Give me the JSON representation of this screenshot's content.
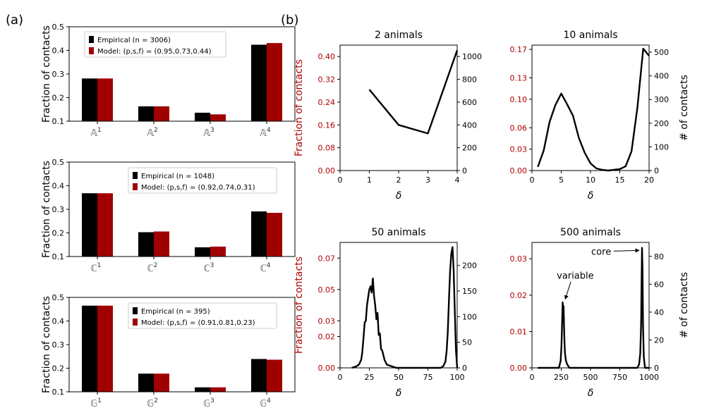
{
  "panel_labels": [
    "(a)",
    "(b)"
  ],
  "colors": {
    "empirical": "#000000",
    "model": "#a00000",
    "axis_red": "#b00000",
    "axis": "#000000"
  },
  "chart_data": [
    {
      "id": "a1",
      "type": "bar",
      "panel": "(a)",
      "categories": [
        "𝔸1",
        "𝔸2",
        "𝔸3",
        "𝔸4"
      ],
      "cat_base": "𝔸",
      "cat_sup": [
        "1",
        "2",
        "3",
        "4"
      ],
      "ylabel": "Fraction of contacts",
      "ylim": [
        0.1,
        0.5
      ],
      "yticks": [
        0.1,
        0.2,
        0.3,
        0.4,
        0.5
      ],
      "ytick_labels": [
        "0.1",
        "0.2",
        "0.3",
        "0.4",
        "0.5"
      ],
      "legend": [
        "Empirical (n = 3006)",
        "Model: (p,s,f) = (0.95,0.73,0.44)"
      ],
      "legend_position": "top-left",
      "series": [
        {
          "name": "Empirical (n = 3006)",
          "color": "#000000",
          "values": [
            0.281,
            0.163,
            0.136,
            0.424
          ]
        },
        {
          "name": "Model: (p,s,f) = (0.95,0.73,0.44)",
          "color": "#a00000",
          "values": [
            0.281,
            0.163,
            0.129,
            0.431
          ]
        }
      ]
    },
    {
      "id": "a2",
      "type": "bar",
      "panel": "(a)",
      "categories": [
        "ℂ1",
        "ℂ2",
        "ℂ3",
        "ℂ4"
      ],
      "cat_base": "ℂ",
      "cat_sup": [
        "1",
        "2",
        "3",
        "4"
      ],
      "ylabel": "Fraction of contacts",
      "ylim": [
        0.1,
        0.5
      ],
      "yticks": [
        0.1,
        0.2,
        0.3,
        0.4,
        0.5
      ],
      "ytick_labels": [
        "0.1",
        "0.2",
        "0.3",
        "0.4",
        "0.5"
      ],
      "legend": [
        "Empirical (n = 1048)",
        "Model: (p,s,f) = (0.92,0.74,0.31)"
      ],
      "legend_position": "top-right",
      "series": [
        {
          "name": "Empirical (n = 1048)",
          "color": "#000000",
          "values": [
            0.368,
            0.203,
            0.139,
            0.291
          ]
        },
        {
          "name": "Model: (p,s,f) = (0.92,0.74,0.31)",
          "color": "#a00000",
          "values": [
            0.368,
            0.206,
            0.142,
            0.285
          ]
        }
      ]
    },
    {
      "id": "a3",
      "type": "bar",
      "panel": "(a)",
      "categories": [
        "𝔾1",
        "𝔾2",
        "𝔾3",
        "𝔾4"
      ],
      "cat_base": "𝔾",
      "cat_sup": [
        "1",
        "2",
        "3",
        "4"
      ],
      "ylabel": "Fraction of contacts",
      "ylim": [
        0.1,
        0.5
      ],
      "yticks": [
        0.1,
        0.2,
        0.3,
        0.4,
        0.5
      ],
      "ytick_labels": [
        "0.1",
        "0.2",
        "0.3",
        "0.4",
        "0.5"
      ],
      "legend": [
        "Empirical (n = 395)",
        "Model: (p,s,f) = (0.91,0.81,0.23)"
      ],
      "legend_position": "top-right",
      "series": [
        {
          "name": "Empirical (n = 395)",
          "color": "#000000",
          "values": [
            0.465,
            0.177,
            0.119,
            0.239
          ]
        },
        {
          "name": "Model: (p,s,f) = (0.91,0.81,0.23)",
          "color": "#a00000",
          "values": [
            0.465,
            0.177,
            0.119,
            0.236
          ]
        }
      ]
    },
    {
      "id": "b1",
      "type": "line",
      "panel": "(b)",
      "title": "2 animals",
      "xlabel": "δ",
      "ylabel_left": "Fraction of contacts",
      "ylabel_right": "",
      "xlim": [
        0,
        4
      ],
      "xticks": [
        0,
        1,
        2,
        3,
        4
      ],
      "ylim": [
        0,
        0.44
      ],
      "yticks": [
        0.0,
        0.08,
        0.16,
        0.24,
        0.32,
        0.4
      ],
      "ytick_labels": [
        "0.00",
        "0.08",
        "0.16",
        "0.24",
        "0.32",
        "0.40"
      ],
      "y2lim": [
        0,
        1100
      ],
      "y2ticks": [
        0,
        200,
        400,
        600,
        800,
        1000
      ],
      "x": [
        1,
        2,
        3,
        4
      ],
      "y": [
        0.284,
        0.16,
        0.13,
        0.422
      ]
    },
    {
      "id": "b2",
      "type": "line",
      "panel": "(b)",
      "title": "10 animals",
      "xlabel": "δ",
      "ylabel_left": "",
      "ylabel_right": "# of contacts",
      "xlim": [
        0,
        20
      ],
      "xticks": [
        0,
        5,
        10,
        15,
        20
      ],
      "ylim": [
        0,
        0.176
      ],
      "yticks": [
        0.0,
        0.03,
        0.06,
        0.1,
        0.13,
        0.17
      ],
      "ytick_labels": [
        "0.00",
        "0.03",
        "0.06",
        "0.10",
        "0.13",
        "0.17"
      ],
      "y2lim": [
        0,
        530
      ],
      "y2ticks": [
        0,
        100,
        200,
        300,
        400,
        500
      ],
      "x": [
        1,
        2,
        3,
        4,
        5,
        6,
        7,
        8,
        9,
        10,
        11,
        12,
        13,
        14,
        15,
        16,
        17,
        18,
        19,
        20
      ],
      "y": [
        0.005,
        0.028,
        0.068,
        0.092,
        0.108,
        0.093,
        0.077,
        0.046,
        0.025,
        0.01,
        0.003,
        0.001,
        0.0,
        0.001,
        0.002,
        0.006,
        0.027,
        0.088,
        0.171,
        0.161
      ]
    },
    {
      "id": "b3",
      "type": "line",
      "panel": "(b)",
      "title": "50 animals",
      "xlabel": "δ",
      "ylabel_left": "Fraction of contacts",
      "ylabel_right": "",
      "xlim": [
        0,
        100
      ],
      "xticks": [
        0,
        25,
        50,
        75,
        100
      ],
      "ylim": [
        0,
        0.08
      ],
      "yticks": [
        0.0,
        0.02,
        0.03,
        0.05,
        0.07
      ],
      "ytick_labels": [
        "0.00",
        "0.02",
        "0.03",
        "0.05",
        "0.07"
      ],
      "y2lim": [
        0,
        245
      ],
      "y2ticks": [
        0,
        50,
        100,
        150,
        200
      ],
      "x": [
        10,
        14,
        16,
        18,
        19,
        20,
        21,
        22,
        23,
        24,
        25,
        26,
        27,
        28,
        29,
        30,
        31,
        32,
        33,
        34,
        35,
        36,
        38,
        40,
        44,
        48,
        86,
        88,
        90,
        91,
        92,
        93,
        94,
        95,
        96,
        97,
        98,
        99,
        100
      ],
      "y": [
        0.0,
        0.001,
        0.002,
        0.005,
        0.01,
        0.019,
        0.029,
        0.03,
        0.04,
        0.045,
        0.05,
        0.052,
        0.048,
        0.057,
        0.046,
        0.04,
        0.031,
        0.035,
        0.021,
        0.022,
        0.012,
        0.011,
        0.005,
        0.002,
        0.001,
        0.0,
        0.0,
        0.001,
        0.004,
        0.011,
        0.023,
        0.044,
        0.062,
        0.073,
        0.077,
        0.062,
        0.035,
        0.011,
        0.0
      ]
    },
    {
      "id": "b4",
      "type": "line",
      "panel": "(b)",
      "title": "500 animals",
      "xlabel": "δ",
      "ylabel_left": "",
      "ylabel_right": "# of contacts",
      "xlim": [
        0,
        1000
      ],
      "xticks": [
        0,
        250,
        500,
        750,
        1000
      ],
      "ylim": [
        0,
        0.0345
      ],
      "yticks": [
        0.0,
        0.01,
        0.02,
        0.03
      ],
      "ytick_labels": [
        "0.00",
        "0.01",
        "0.02",
        "0.03"
      ],
      "y2lim": [
        0,
        90
      ],
      "y2ticks": [
        0,
        20,
        40,
        60,
        80
      ],
      "x": [
        50,
        230,
        245,
        252,
        258,
        262,
        266,
        270,
        274,
        278,
        282,
        290,
        300,
        320,
        900,
        915,
        925,
        932,
        936,
        940,
        944,
        948,
        955,
        965,
        1000
      ],
      "y": [
        0.0,
        0.0,
        0.002,
        0.006,
        0.013,
        0.018,
        0.016,
        0.017,
        0.011,
        0.007,
        0.004,
        0.002,
        0.001,
        0.0,
        0.0,
        0.001,
        0.004,
        0.012,
        0.024,
        0.033,
        0.027,
        0.012,
        0.003,
        0.0,
        0.0
      ],
      "annotations": [
        {
          "text": "core",
          "x": 940,
          "y": 0.0325
        },
        {
          "text": "variable",
          "x": 272,
          "y": 0.0183
        }
      ]
    }
  ]
}
